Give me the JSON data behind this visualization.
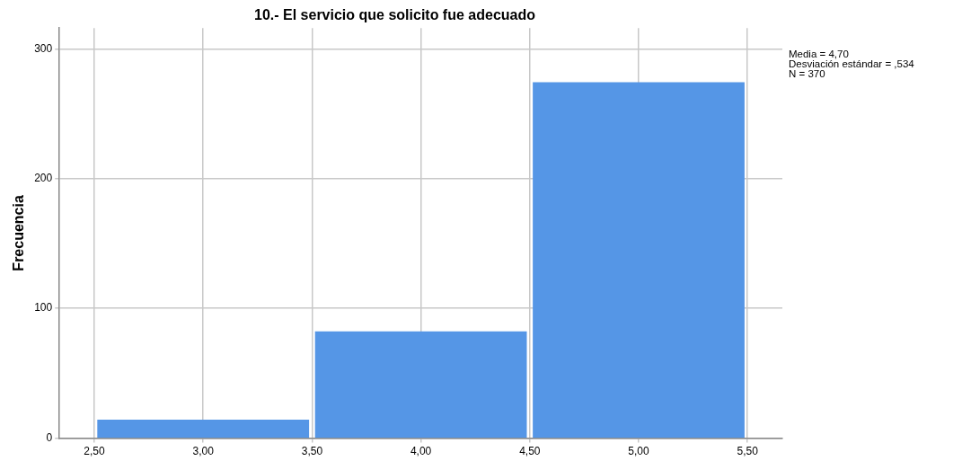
{
  "chart_data": {
    "type": "histogram",
    "title": "10.- El servicio que solicito fue adecuado",
    "ylabel": "Frecuencia",
    "bins": [
      2.5,
      3.5,
      4.5,
      5.5
    ],
    "values": [
      14,
      82,
      274
    ],
    "color": "#5596e6",
    "xlim": [
      2.34,
      5.66
    ],
    "xticks": [
      {
        "value": 2.5,
        "label": "2,50"
      },
      {
        "value": 3,
        "label": "3,00"
      },
      {
        "value": 3.5,
        "label": "3,50"
      },
      {
        "value": 4,
        "label": "4,00"
      },
      {
        "value": 4.5,
        "label": "4,50"
      },
      {
        "value": 5,
        "label": "5,00"
      },
      {
        "value": 5.5,
        "label": "5,50"
      }
    ],
    "ylim": [
      0,
      316
    ],
    "yticks": [
      0,
      100,
      200,
      300
    ],
    "grid": true,
    "legend": false,
    "annotations": [
      "Media = 4,70",
      "Desviación estándar = ,534",
      "N = 370"
    ]
  }
}
